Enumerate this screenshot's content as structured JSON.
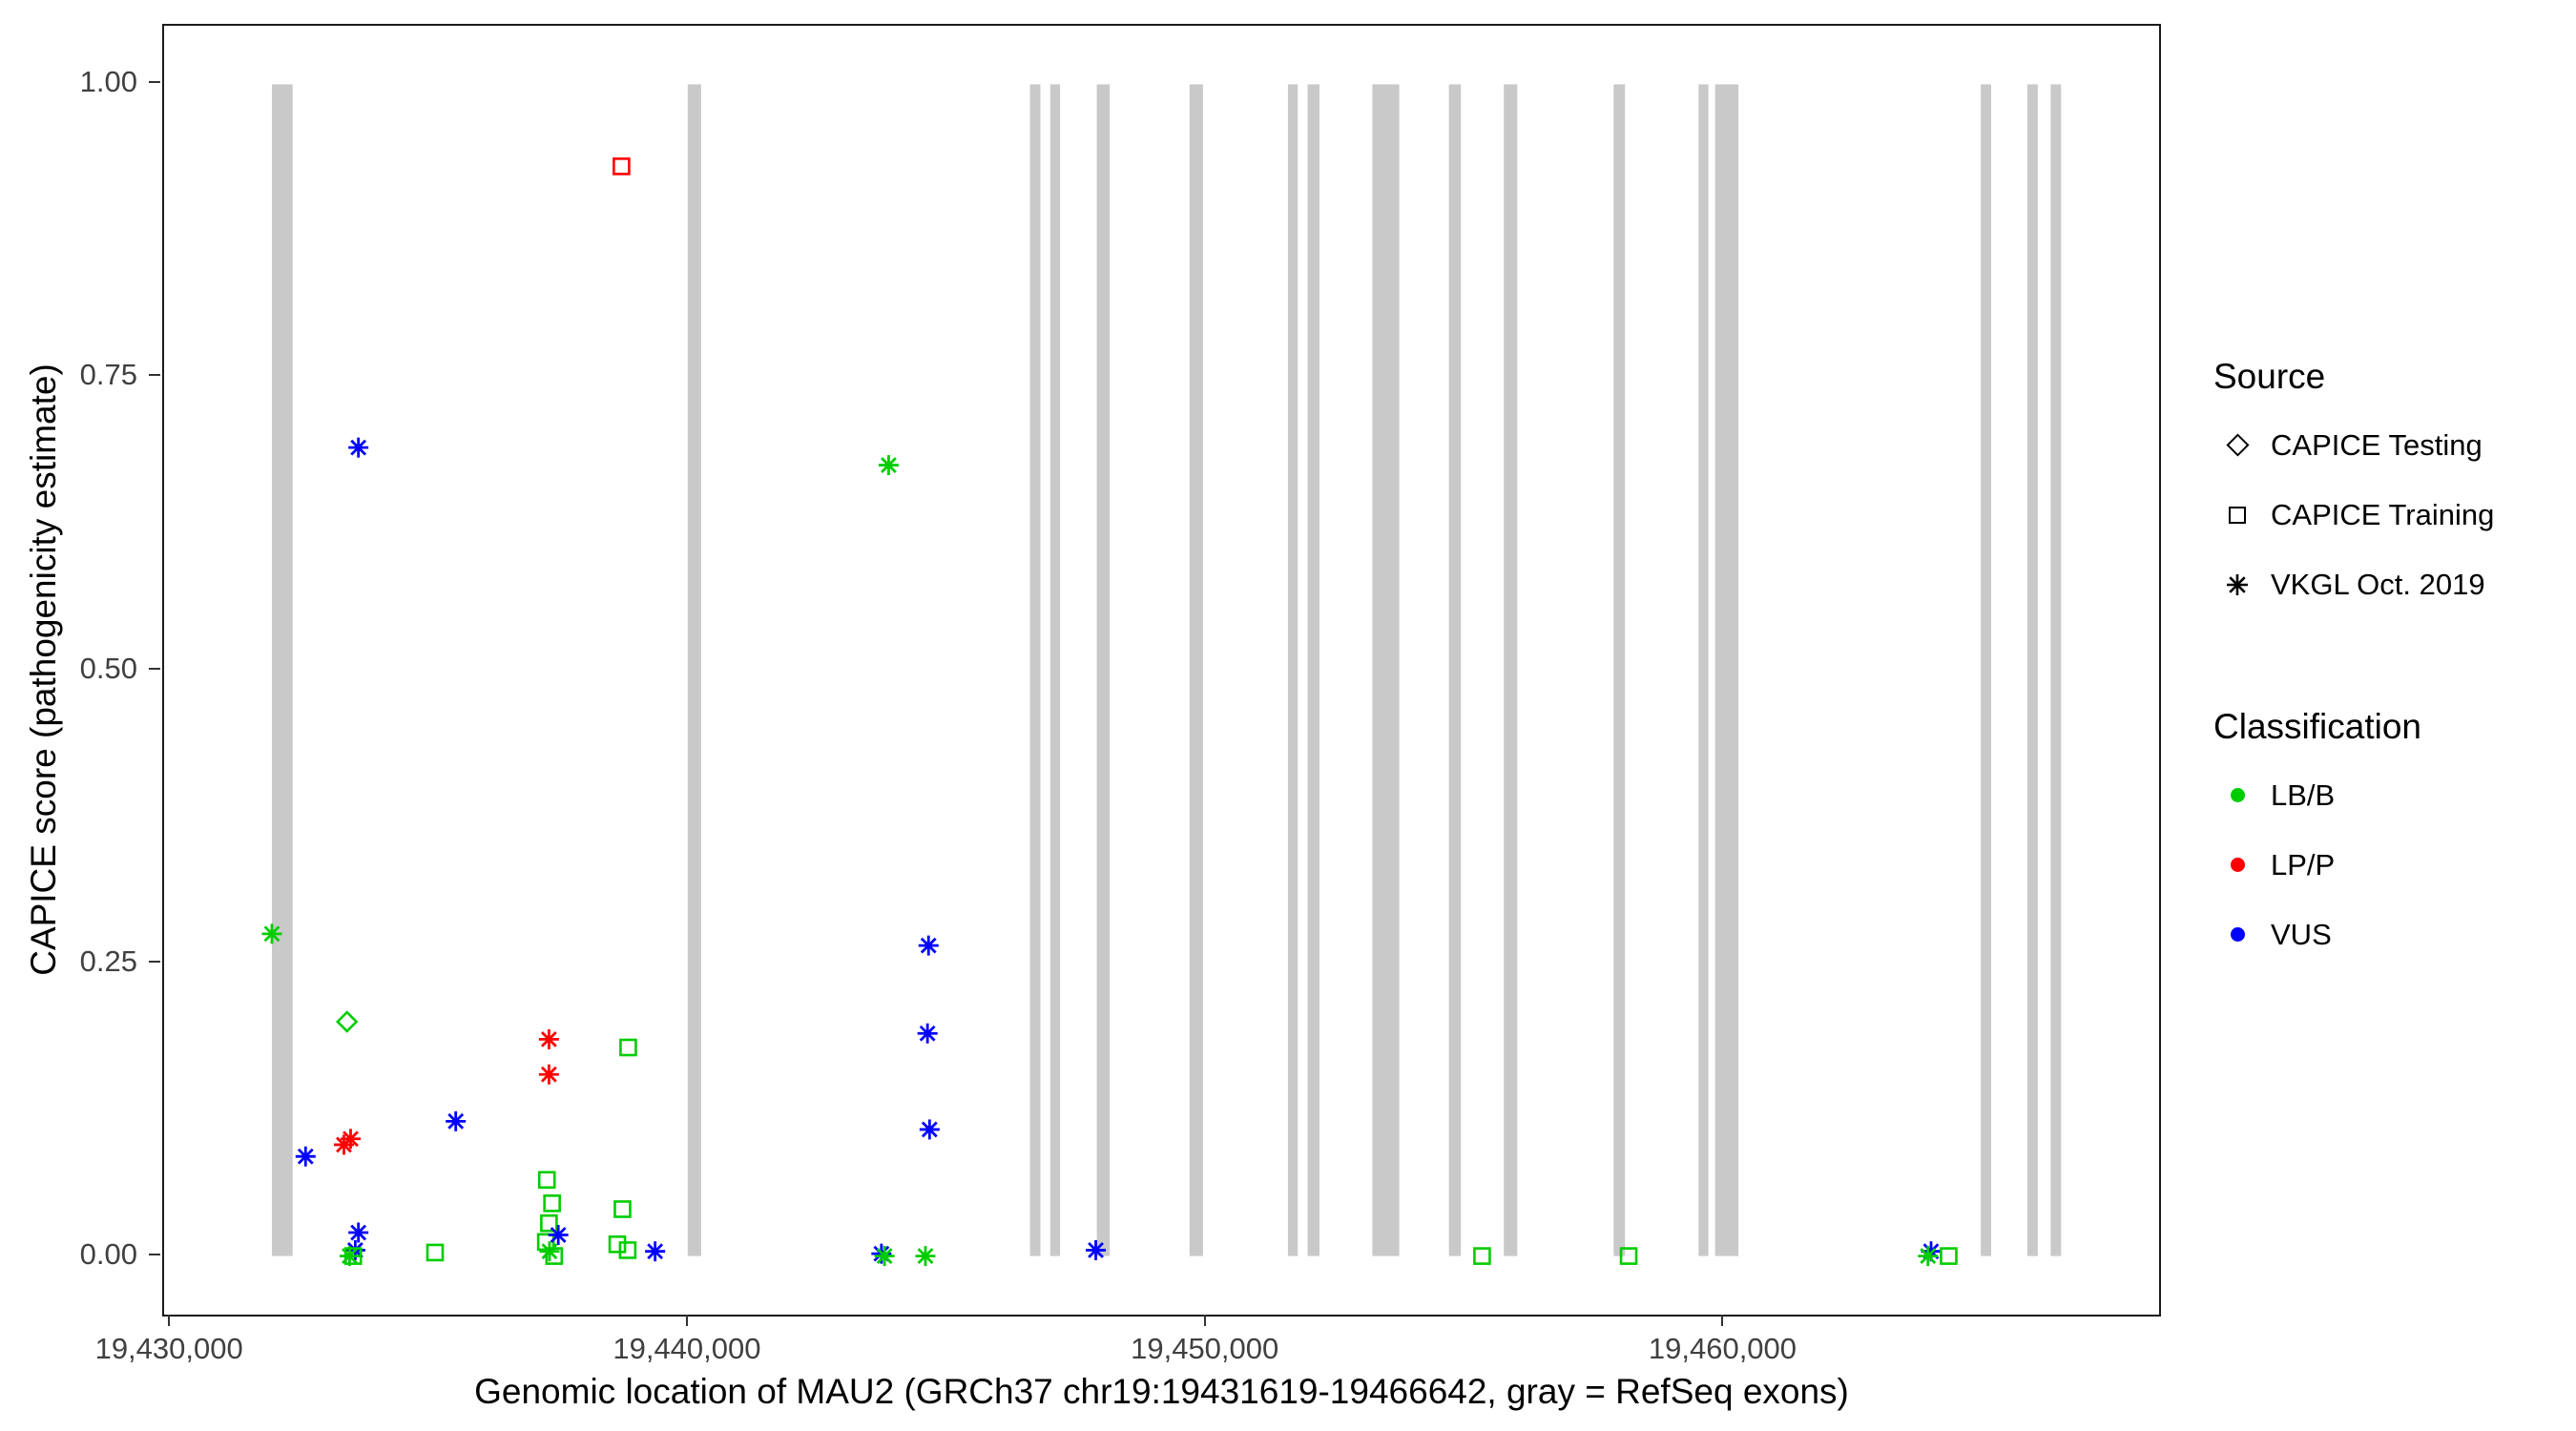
{
  "figure": {
    "background": "#FFFFFF",
    "panel_border_color": "#1B1B1B"
  },
  "chart_data": {
    "type": "scatter",
    "title": "",
    "xlabel": "Genomic location of MAU2 (GRCh37 chr19:19431619-19466642, gray = RefSeq exons)",
    "ylabel": "CAPICE score (pathogenicity estimate)",
    "xlim": [
      19429868,
      19468393
    ],
    "ylim": [
      -0.05,
      1.05
    ],
    "grid": "off",
    "legend_position": "right",
    "x_ticks": [
      {
        "value": 19430000,
        "label": "19,430,000"
      },
      {
        "value": 19440000,
        "label": "19,440,000"
      },
      {
        "value": 19450000,
        "label": "19,450,000"
      },
      {
        "value": 19460000,
        "label": "19,460,000"
      }
    ],
    "y_ticks": [
      {
        "value": 0.0,
        "label": "0.00"
      },
      {
        "value": 0.25,
        "label": "0.25"
      },
      {
        "value": 0.5,
        "label": "0.50"
      },
      {
        "value": 0.75,
        "label": "0.75"
      },
      {
        "value": 1.0,
        "label": "1.00"
      }
    ],
    "exon_color": "#C9C9C9",
    "exons": [
      [
        19431950,
        19432350
      ],
      [
        19439980,
        19440240
      ],
      [
        19446590,
        19446790
      ],
      [
        19446980,
        19447170
      ],
      [
        19447880,
        19448130
      ],
      [
        19449670,
        19449930
      ],
      [
        19451570,
        19451760
      ],
      [
        19451950,
        19452180
      ],
      [
        19453200,
        19453720
      ],
      [
        19454680,
        19454910
      ],
      [
        19455740,
        19456000
      ],
      [
        19457860,
        19458080
      ],
      [
        19459500,
        19459690
      ],
      [
        19459820,
        19460270
      ],
      [
        19464950,
        19465150
      ],
      [
        19465850,
        19466050
      ],
      [
        19466300,
        19466500
      ]
    ],
    "classification_colors": {
      "LB/B": "#00CD00",
      "LP/P": "#FF0000",
      "VUS": "#0000FF"
    },
    "source_shapes": {
      "CAPICE Testing": "diamond",
      "CAPICE Training": "square",
      "VKGL Oct. 2019": "asterisk"
    },
    "points": [
      {
        "x": 19431950,
        "y": 0.275,
        "source": "VKGL Oct. 2019",
        "classification": "LB/B"
      },
      {
        "x": 19432600,
        "y": 0.085,
        "source": "VKGL Oct. 2019",
        "classification": "VUS"
      },
      {
        "x": 19433340,
        "y": 0.095,
        "source": "VKGL Oct. 2019",
        "classification": "LP/P"
      },
      {
        "x": 19433470,
        "y": 0.1,
        "source": "VKGL Oct. 2019",
        "classification": "LP/P"
      },
      {
        "x": 19433400,
        "y": 0.2,
        "source": "CAPICE Testing",
        "classification": "LB/B"
      },
      {
        "x": 19433620,
        "y": 0.69,
        "source": "VKGL Oct. 2019",
        "classification": "VUS"
      },
      {
        "x": 19433620,
        "y": 0.02,
        "source": "VKGL Oct. 2019",
        "classification": "VUS"
      },
      {
        "x": 19433560,
        "y": 0.005,
        "source": "VKGL Oct. 2019",
        "classification": "VUS"
      },
      {
        "x": 19433450,
        "y": 0.0,
        "source": "VKGL Oct. 2019",
        "classification": "LB/B"
      },
      {
        "x": 19433520,
        "y": 0.0,
        "source": "CAPICE Training",
        "classification": "LB/B"
      },
      {
        "x": 19435100,
        "y": 0.003,
        "source": "CAPICE Training",
        "classification": "LB/B"
      },
      {
        "x": 19435500,
        "y": 0.115,
        "source": "VKGL Oct. 2019",
        "classification": "VUS"
      },
      {
        "x": 19437300,
        "y": 0.185,
        "source": "VKGL Oct. 2019",
        "classification": "LP/P"
      },
      {
        "x": 19437300,
        "y": 0.155,
        "source": "VKGL Oct. 2019",
        "classification": "LP/P"
      },
      {
        "x": 19437260,
        "y": 0.065,
        "source": "CAPICE Training",
        "classification": "LB/B"
      },
      {
        "x": 19437360,
        "y": 0.045,
        "source": "CAPICE Training",
        "classification": "LB/B"
      },
      {
        "x": 19437300,
        "y": 0.028,
        "source": "CAPICE Training",
        "classification": "LB/B"
      },
      {
        "x": 19437240,
        "y": 0.012,
        "source": "CAPICE Training",
        "classification": "LB/B"
      },
      {
        "x": 19437310,
        "y": 0.004,
        "source": "VKGL Oct. 2019",
        "classification": "LB/B"
      },
      {
        "x": 19437480,
        "y": 0.018,
        "source": "VKGL Oct. 2019",
        "classification": "VUS"
      },
      {
        "x": 19437400,
        "y": 0.0,
        "source": "CAPICE Training",
        "classification": "LB/B"
      },
      {
        "x": 19438700,
        "y": 0.93,
        "source": "CAPICE Training",
        "classification": "LP/P"
      },
      {
        "x": 19438830,
        "y": 0.178,
        "source": "CAPICE Training",
        "classification": "LB/B"
      },
      {
        "x": 19438720,
        "y": 0.04,
        "source": "CAPICE Training",
        "classification": "LB/B"
      },
      {
        "x": 19438620,
        "y": 0.01,
        "source": "CAPICE Training",
        "classification": "LB/B"
      },
      {
        "x": 19438820,
        "y": 0.005,
        "source": "CAPICE Training",
        "classification": "LB/B"
      },
      {
        "x": 19439350,
        "y": 0.004,
        "source": "VKGL Oct. 2019",
        "classification": "VUS"
      },
      {
        "x": 19443860,
        "y": 0.675,
        "source": "VKGL Oct. 2019",
        "classification": "LB/B"
      },
      {
        "x": 19443720,
        "y": 0.002,
        "source": "VKGL Oct. 2019",
        "classification": "VUS"
      },
      {
        "x": 19443780,
        "y": 0.0,
        "source": "VKGL Oct. 2019",
        "classification": "LB/B"
      },
      {
        "x": 19444570,
        "y": 0.0,
        "source": "VKGL Oct. 2019",
        "classification": "LB/B"
      },
      {
        "x": 19444630,
        "y": 0.265,
        "source": "VKGL Oct. 2019",
        "classification": "VUS"
      },
      {
        "x": 19444610,
        "y": 0.19,
        "source": "VKGL Oct. 2019",
        "classification": "VUS"
      },
      {
        "x": 19444650,
        "y": 0.108,
        "source": "VKGL Oct. 2019",
        "classification": "VUS"
      },
      {
        "x": 19447860,
        "y": 0.005,
        "source": "VKGL Oct. 2019",
        "classification": "VUS"
      },
      {
        "x": 19455320,
        "y": 0.0,
        "source": "CAPICE Training",
        "classification": "LB/B"
      },
      {
        "x": 19458150,
        "y": 0.0,
        "source": "CAPICE Training",
        "classification": "LB/B"
      },
      {
        "x": 19463990,
        "y": 0.004,
        "source": "VKGL Oct. 2019",
        "classification": "VUS"
      },
      {
        "x": 19463930,
        "y": 0.0,
        "source": "VKGL Oct. 2019",
        "classification": "LB/B"
      },
      {
        "x": 19464330,
        "y": 0.0,
        "source": "CAPICE Training",
        "classification": "LB/B"
      }
    ]
  },
  "legend": {
    "source_title": "Source",
    "source_items": [
      {
        "label": "CAPICE Testing",
        "shape": "diamond"
      },
      {
        "label": "CAPICE Training",
        "shape": "square"
      },
      {
        "label": "VKGL Oct. 2019",
        "shape": "asterisk"
      }
    ],
    "classification_title": "Classification",
    "classification_items": [
      {
        "label": "LB/B",
        "color": "#00CD00"
      },
      {
        "label": "LP/P",
        "color": "#FF0000"
      },
      {
        "label": "VUS",
        "color": "#0000FF"
      }
    ]
  }
}
